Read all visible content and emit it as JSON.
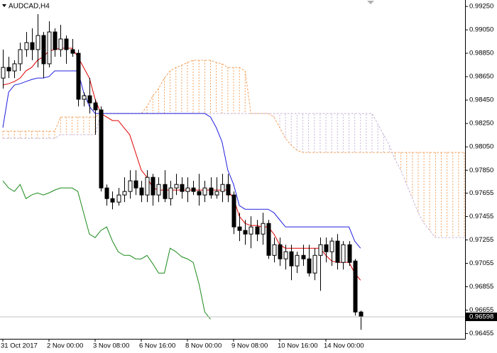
{
  "chart_data": {
    "type": "candlestick",
    "title": "AUDCAD,H4",
    "categories": [
      "31 Oct 2017",
      null,
      null,
      null,
      null,
      null,
      null,
      null,
      "2 Nov 00:00",
      null,
      null,
      null,
      null,
      null,
      null,
      null,
      "3 Nov 08:00",
      null,
      null,
      null,
      null,
      null,
      null,
      null,
      "6 Nov 16:00",
      null,
      null,
      null,
      null,
      null,
      null,
      null,
      "8 Nov 00:00",
      null,
      null,
      null,
      null,
      null,
      null,
      null,
      "9 Nov 08:00",
      null,
      null,
      null,
      null,
      null,
      null,
      null,
      "10 Nov 16:00",
      null,
      null,
      null,
      null,
      null,
      null,
      null,
      "14 Nov 00:00",
      null,
      null,
      null,
      null,
      null,
      null,
      null,
      null,
      null,
      null,
      null,
      null,
      null,
      null,
      null,
      null,
      null,
      null,
      null,
      null,
      null,
      null,
      null,
      null
    ],
    "open": [
      0.98638,
      0.98729,
      0.98699,
      0.9876,
      0.98881,
      0.98941,
      0.98881,
      0.99002,
      0.9876,
      0.99032,
      0.98881,
      0.98972,
      0.98881,
      0.9885,
      0.98457,
      0.98487,
      0.98426,
      0.98366,
      0.97699,
      0.97608,
      0.97578,
      0.97639,
      0.97669,
      0.9776,
      0.97699,
      0.97639,
      0.9779,
      0.97639,
      0.97729,
      0.97608,
      0.97699,
      0.97729,
      0.97669,
      0.97699,
      0.97669,
      0.97639,
      0.97699,
      0.97639,
      0.97669,
      0.97729,
      0.97639,
      0.97366,
      0.97336,
      0.97305,
      0.97366,
      0.97305,
      0.97396,
      0.97123,
      0.97214,
      0.97093,
      0.97154,
      0.97033,
      0.97123,
      0.97093,
      0.96972,
      0.97123,
      0.97214,
      0.97154,
      0.97245,
      0.97063,
      0.97214,
      0.97075,
      0.96639,
      null,
      null,
      null,
      null,
      null,
      null,
      null,
      null,
      null,
      null,
      null,
      null,
      null,
      null,
      null,
      null,
      null,
      null
    ],
    "high": [
      0.98881,
      0.9882,
      0.9879,
      0.98941,
      0.99032,
      0.99063,
      0.99184,
      0.99032,
      0.99123,
      0.99063,
      0.99093,
      0.99002,
      0.98972,
      0.98881,
      0.98517,
      0.98638,
      0.98457,
      0.98396,
      0.97729,
      0.97669,
      0.97699,
      0.9779,
      0.97851,
      0.97851,
      0.9776,
      0.97851,
      0.9782,
      0.9779,
      0.97851,
      0.9776,
      0.9782,
      0.9779,
      0.9779,
      0.9776,
      0.9782,
      0.9776,
      0.9779,
      0.9779,
      0.9782,
      0.9782,
      0.97669,
      0.97487,
      0.97426,
      0.97457,
      0.97426,
      0.97487,
      0.97426,
      0.97275,
      0.97275,
      0.97214,
      0.97214,
      0.97154,
      0.97214,
      0.97214,
      0.97184,
      0.97275,
      0.97275,
      0.97275,
      0.97305,
      0.97245,
      0.97245,
      0.97093,
      0.96651,
      null,
      null,
      null,
      null,
      null,
      null,
      null,
      null,
      null,
      null,
      null,
      null,
      null,
      null,
      null,
      null,
      null,
      null
    ],
    "low": [
      0.98548,
      0.98638,
      0.98638,
      0.98699,
      0.9882,
      0.9879,
      0.98729,
      0.98638,
      0.98729,
      0.9882,
      0.9882,
      0.9876,
      0.9882,
      0.98396,
      0.98396,
      0.98335,
      0.98154,
      0.97669,
      0.97548,
      0.97517,
      0.97548,
      0.97578,
      0.97608,
      0.97639,
      0.97578,
      0.97578,
      0.97548,
      0.97578,
      0.97578,
      0.97548,
      0.97639,
      0.97608,
      0.97578,
      0.97639,
      0.97548,
      0.97578,
      0.97608,
      0.97608,
      0.97578,
      0.97578,
      0.97305,
      0.97245,
      0.97214,
      0.97184,
      0.97245,
      0.97214,
      0.97093,
      0.97063,
      0.97033,
      0.97002,
      0.96911,
      0.96972,
      0.97033,
      0.96942,
      0.96911,
      0.9682,
      0.97063,
      0.97033,
      0.97002,
      0.97002,
      0.97033,
      0.96608,
      0.96487,
      null,
      null,
      null,
      null,
      null,
      null,
      null,
      null,
      null,
      null,
      null,
      null,
      null,
      null,
      null,
      null,
      null,
      null
    ],
    "close": [
      0.98729,
      0.98699,
      0.9876,
      0.98881,
      0.98941,
      0.98881,
      0.99002,
      0.9876,
      0.99032,
      0.98881,
      0.98972,
      0.98881,
      0.9885,
      0.98457,
      0.98487,
      0.98426,
      0.98366,
      0.97699,
      0.97608,
      0.97578,
      0.97639,
      0.97669,
      0.9776,
      0.97699,
      0.97639,
      0.9779,
      0.97639,
      0.97729,
      0.97608,
      0.97699,
      0.97729,
      0.97669,
      0.97699,
      0.97669,
      0.97639,
      0.97699,
      0.97639,
      0.97669,
      0.97729,
      0.97639,
      0.97366,
      0.97336,
      0.97305,
      0.97366,
      0.97305,
      0.97396,
      0.97123,
      0.97214,
      0.97093,
      0.97154,
      0.97033,
      0.97123,
      0.97093,
      0.96972,
      0.97123,
      0.97214,
      0.97154,
      0.97245,
      0.97063,
      0.97214,
      0.97063,
      0.96639,
      0.96598,
      null,
      null,
      null,
      null,
      null,
      null,
      null,
      null,
      null,
      null,
      null,
      null,
      null,
      null,
      null,
      null,
      null,
      null
    ],
    "tenkan": [
      0.98578,
      0.9859,
      0.98608,
      0.98638,
      0.98699,
      0.98729,
      0.9879,
      0.9882,
      0.98869,
      0.98881,
      0.98893,
      0.98893,
      0.98893,
      0.9882,
      0.98729,
      0.98638,
      0.98457,
      0.98335,
      0.98305,
      0.98275,
      0.98275,
      0.98214,
      0.98154,
      0.98002,
      0.97851,
      0.9779,
      0.97699,
      0.97681,
      0.97681,
      0.97681,
      0.97681,
      0.97681,
      0.97681,
      0.97681,
      0.97681,
      0.97681,
      0.97681,
      0.97681,
      0.97681,
      0.97681,
      0.97608,
      0.97457,
      0.97396,
      0.97378,
      0.97378,
      0.97366,
      0.97366,
      0.97305,
      0.97214,
      0.97184,
      0.97184,
      0.97184,
      0.97184,
      0.97184,
      0.97184,
      0.97184,
      0.97123,
      0.97075,
      0.97063,
      0.97063,
      0.97063,
      0.96972,
      0.96911,
      null,
      null,
      null,
      null,
      null,
      null,
      null,
      null,
      null,
      null,
      null,
      null,
      null,
      null,
      null,
      null,
      null,
      null
    ],
    "kijun": [
      0.98214,
      0.98517,
      0.98578,
      0.9859,
      0.98608,
      0.98626,
      0.98638,
      0.98638,
      0.98651,
      0.98699,
      0.98699,
      0.98699,
      0.98699,
      0.98699,
      0.98517,
      0.98396,
      0.98335,
      0.98335,
      0.98335,
      0.98335,
      0.98335,
      0.98335,
      0.98335,
      0.98335,
      0.98335,
      0.98335,
      0.98335,
      0.98335,
      0.98335,
      0.98335,
      0.98335,
      0.98335,
      0.98335,
      0.98335,
      0.98335,
      0.98335,
      0.98305,
      0.98214,
      0.98093,
      0.97851,
      0.97729,
      0.97548,
      0.97517,
      0.97517,
      0.97517,
      0.97517,
      0.97517,
      0.97487,
      0.97426,
      0.97366,
      0.97366,
      0.97366,
      0.97366,
      0.97366,
      0.97366,
      0.97366,
      0.97366,
      0.97366,
      0.97366,
      0.97366,
      0.97366,
      0.97245,
      0.97184,
      null,
      null,
      null,
      null,
      null,
      null,
      null,
      null,
      null,
      null,
      null,
      null,
      null,
      null,
      null,
      null,
      null,
      null
    ],
    "chikou": [
      0.9776,
      0.97699,
      0.97669,
      0.97729,
      0.97608,
      0.97639,
      0.97657,
      0.97639,
      0.97657,
      0.97681,
      0.97699,
      0.97699,
      0.97699,
      0.97669,
      0.97487,
      0.97305,
      0.97275,
      0.97336,
      0.97366,
      0.97245,
      0.97154,
      0.97123,
      0.97123,
      0.97093,
      0.97093,
      0.97123,
      0.97051,
      0.96972,
      0.96972,
      0.97184,
      0.97154,
      0.97111,
      0.97093,
      0.97063,
      0.96881,
      0.96639,
      0.96578,
      null,
      null,
      null,
      null,
      null,
      null,
      null,
      null,
      null,
      null,
      null,
      null,
      null,
      null,
      null,
      null,
      null,
      null,
      null,
      null,
      null,
      null,
      null,
      null,
      null,
      null,
      null,
      null,
      null,
      null,
      null,
      null,
      null,
      null,
      null,
      null,
      null,
      null,
      null,
      null,
      null,
      null,
      null,
      null
    ],
    "span_a": [
      0.98184,
      0.98184,
      0.98184,
      0.98184,
      0.98184,
      0.98184,
      0.98184,
      0.98184,
      0.98184,
      0.98184,
      0.98305,
      0.98305,
      0.98305,
      0.98305,
      0.98305,
      0.98305,
      0.98305,
      0.98335,
      0.98335,
      0.98335,
      0.98335,
      0.98335,
      0.98335,
      0.98335,
      0.98335,
      0.98396,
      0.98487,
      0.98548,
      0.98638,
      0.98699,
      0.98729,
      0.98747,
      0.98772,
      0.9879,
      0.9879,
      0.9879,
      0.9879,
      0.98772,
      0.9876,
      0.98729,
      0.98729,
      0.98729,
      0.98699,
      0.98335,
      0.98335,
      0.98335,
      0.98335,
      0.98305,
      0.98214,
      0.98123,
      0.98063,
      0.9802,
      0.98002,
      0.98002,
      0.98002,
      0.98002,
      0.98002,
      0.98002,
      0.98002,
      0.98002,
      0.98002,
      0.98002,
      0.98002,
      0.98002,
      0.98002,
      0.98002,
      0.98002,
      0.98002,
      0.98002,
      0.98002,
      0.98002,
      0.98002,
      0.98002,
      0.98002,
      0.98002,
      0.98002,
      0.98002,
      0.98002,
      0.98002,
      0.98002,
      0.98002
    ],
    "span_b": [
      0.98123,
      0.98123,
      0.98123,
      0.98123,
      0.98123,
      0.98123,
      0.98123,
      0.98123,
      0.98123,
      0.98123,
      0.98154,
      0.98154,
      0.98154,
      0.98154,
      0.98154,
      0.98154,
      0.98154,
      0.98335,
      0.98335,
      0.98335,
      0.98335,
      0.98335,
      0.98335,
      0.98335,
      0.98335,
      0.98335,
      0.98335,
      0.98335,
      0.98335,
      0.98335,
      0.98335,
      0.98335,
      0.98335,
      0.98335,
      0.98335,
      0.98335,
      0.98335,
      0.98335,
      0.98335,
      0.98335,
      0.98335,
      0.98335,
      0.98335,
      0.98335,
      0.98335,
      0.98335,
      0.98335,
      0.98335,
      0.98335,
      0.98335,
      0.98335,
      0.98335,
      0.98335,
      0.98335,
      0.98335,
      0.98335,
      0.98335,
      0.98335,
      0.98335,
      0.98335,
      0.98335,
      0.98335,
      0.98335,
      0.98335,
      0.98335,
      0.98245,
      0.98154,
      0.98063,
      0.97941,
      0.97851,
      0.97729,
      0.97608,
      0.97487,
      0.97396,
      0.97336,
      0.97275,
      0.97275,
      0.97275,
      0.97275,
      0.97275,
      0.97275
    ],
    "colors": {
      "bull_body": "#ffffff",
      "bear_body": "#000000",
      "outline": "#000000",
      "tenkan": "#e00000",
      "kijun": "#2020e0",
      "chikou": "#1a8a1a",
      "cloud_up": "#f4a460",
      "cloud_down": "#c8b4d8"
    },
    "last_price": 0.96598,
    "ylim": [
      0.9641,
      0.99305
    ],
    "yticks": [
      {
        "value": 0.9925,
        "label": "0.99250"
      },
      {
        "value": 0.9905,
        "label": "0.99050"
      },
      {
        "value": 0.9885,
        "label": "0.98850"
      },
      {
        "value": 0.9865,
        "label": "0.98650"
      },
      {
        "value": 0.9845,
        "label": "0.98450"
      },
      {
        "value": 0.9825,
        "label": "0.98250"
      },
      {
        "value": 0.9805,
        "label": "0.98050"
      },
      {
        "value": 0.9785,
        "label": "0.97850"
      },
      0.97655,
      0.97455,
      0.97255,
      0.97055,
      0.96855,
      0.96655,
      0.96455
    ],
    "grid": false
  }
}
